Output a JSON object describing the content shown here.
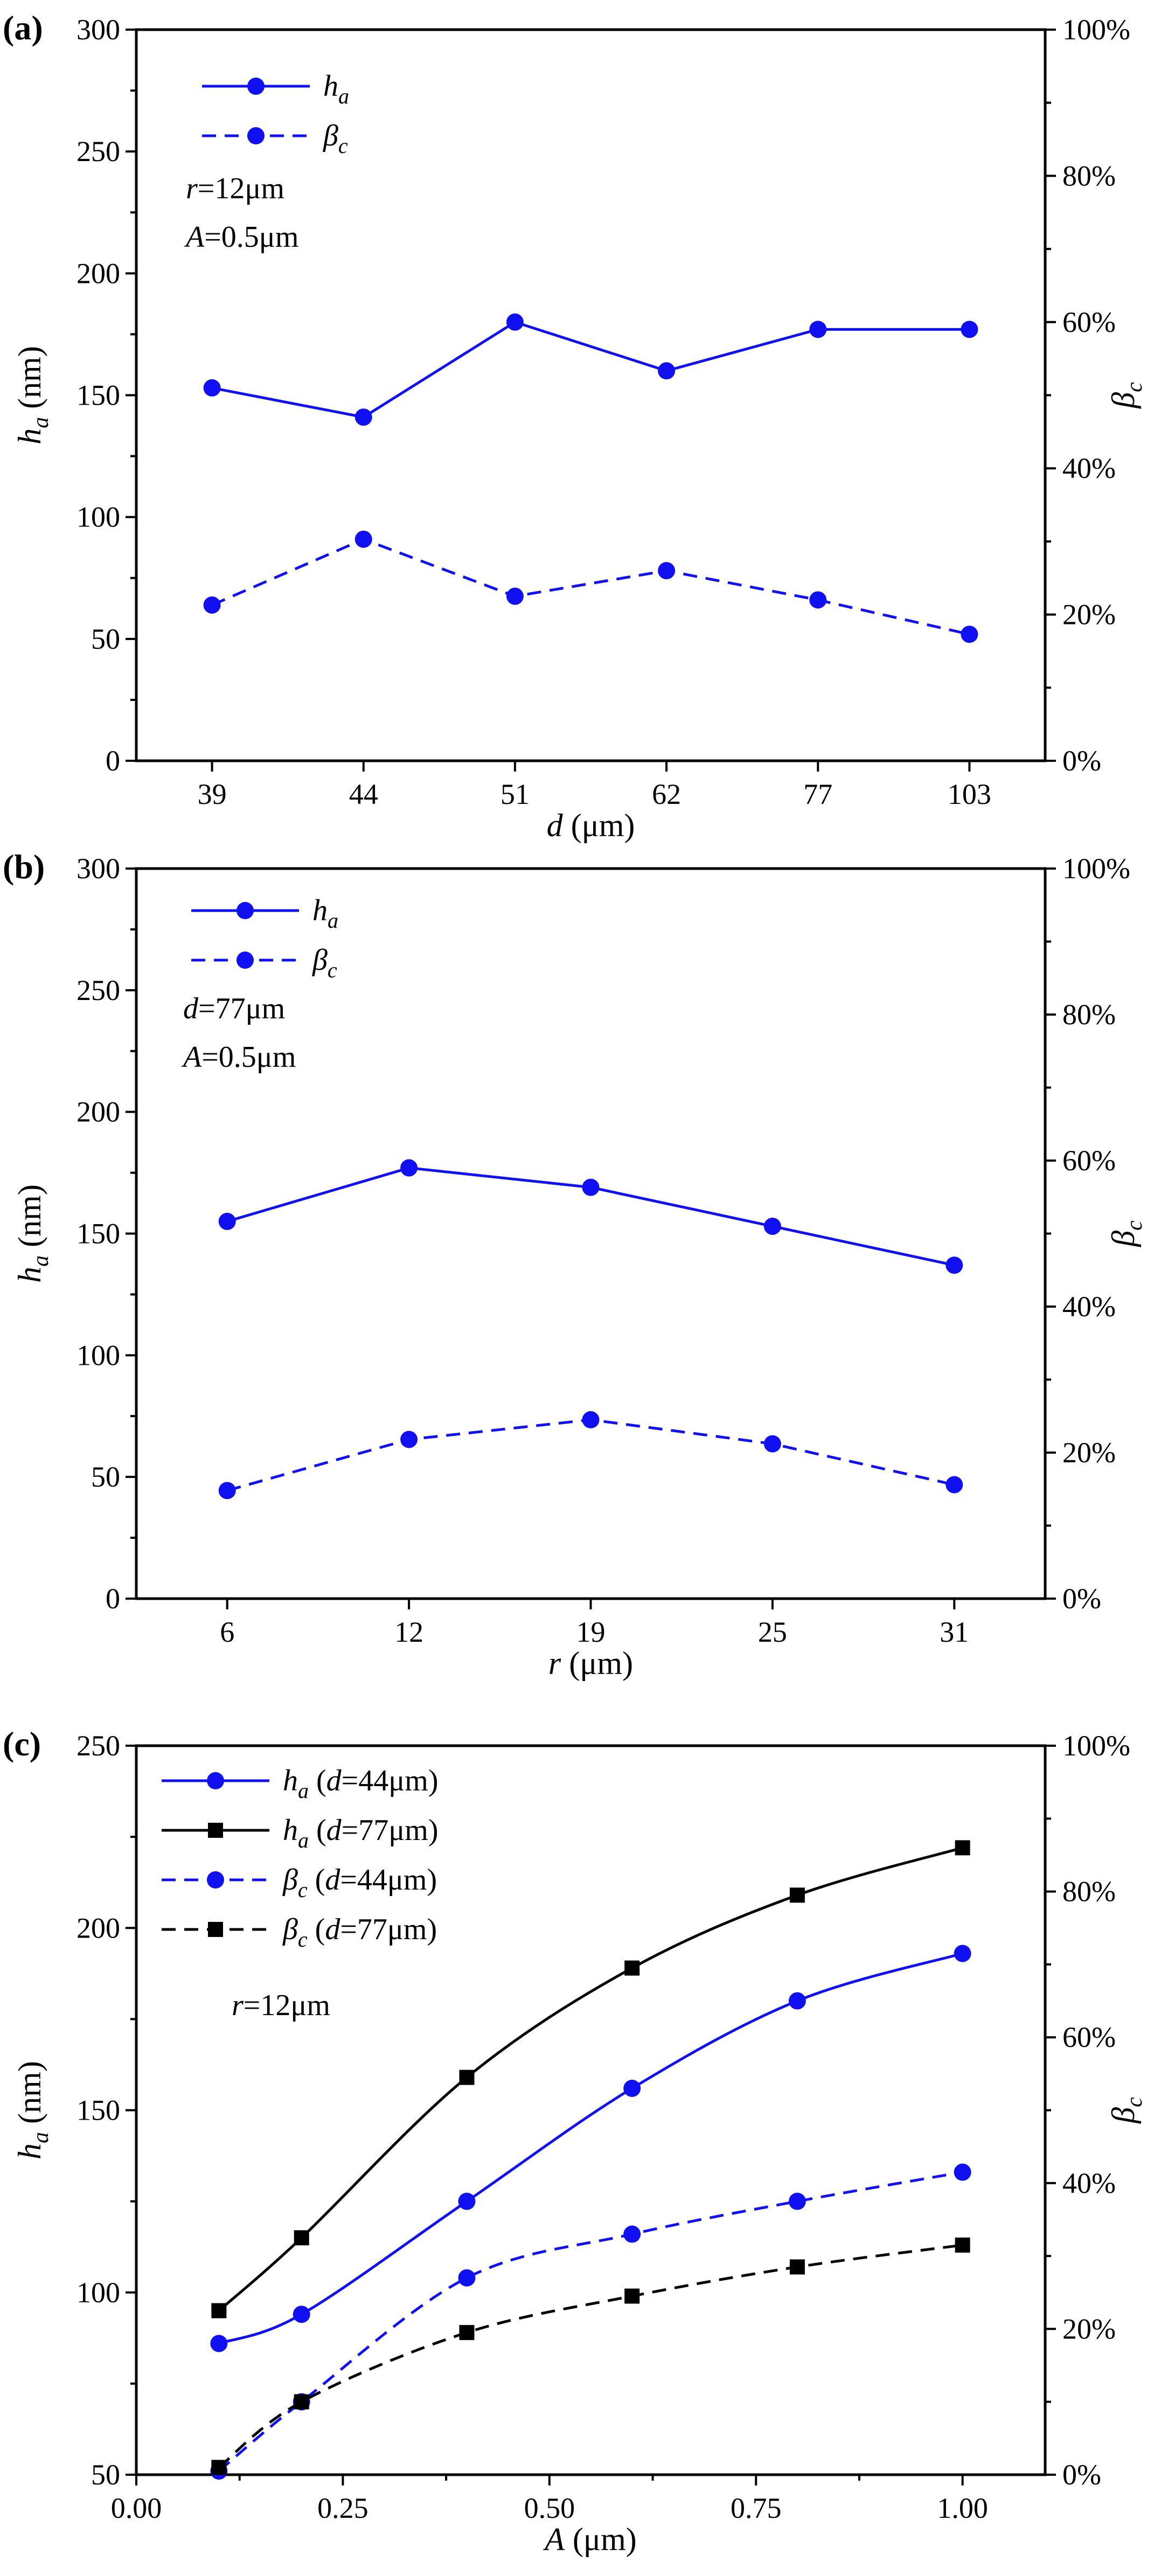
{
  "figure": {
    "colors": {
      "blue": "#1010f0",
      "black": "#000000"
    }
  },
  "chart_data": [
    {
      "type": "line",
      "panel_label": "(a)",
      "x_type": "categorical",
      "categories": [
        "39",
        "44",
        "51",
        "62",
        "77",
        "103"
      ],
      "xlabel_var": "d",
      "xlabel_unit": " (μm)",
      "ylabel_var": "h",
      "ylabel_sub": "a",
      "ylabel_unit": " (nm)",
      "ylim": [
        0,
        300
      ],
      "yticks": [
        "0",
        "50",
        "100",
        "150",
        "200",
        "250",
        "300"
      ],
      "y2label_var": "β",
      "y2label_sub": "c",
      "y2lim": [
        0,
        100
      ],
      "y2ticks": [
        "0%",
        "20%",
        "40%",
        "60%",
        "80%",
        "100%"
      ],
      "series": [
        {
          "name": "h_a",
          "label_var": "h",
          "label_sub": "a",
          "label_rest": "",
          "axis": "left",
          "style": "solid",
          "marker": "circle",
          "color": "#1010f0",
          "values": [
            153,
            141,
            180,
            160,
            177,
            177
          ]
        },
        {
          "name": "β_c",
          "label_var": "β",
          "label_sub": "c",
          "label_rest": "",
          "axis": "right",
          "style": "dashed",
          "marker": "circle",
          "color": "#1010f0",
          "values": [
            21.3,
            30.3,
            22.5,
            26.0,
            22.0,
            17.3
          ]
        }
      ],
      "annotations": [
        {
          "var": "r",
          "rest": "=12μm"
        },
        {
          "var": "A",
          "rest": "=0.5μm"
        }
      ]
    },
    {
      "type": "line",
      "panel_label": "(b)",
      "x_type": "categorical",
      "categories": [
        "6",
        "12",
        "19",
        "25",
        "31"
      ],
      "xlabel_var": "r",
      "xlabel_unit": " (μm)",
      "ylabel_var": "h",
      "ylabel_sub": "a",
      "ylabel_unit": " (nm)",
      "ylim": [
        0,
        300
      ],
      "yticks": [
        "0",
        "50",
        "100",
        "150",
        "200",
        "250",
        "300"
      ],
      "y2label_var": "β",
      "y2label_sub": "c",
      "y2lim": [
        0,
        100
      ],
      "y2ticks": [
        "0%",
        "20%",
        "40%",
        "60%",
        "80%",
        "100%"
      ],
      "series": [
        {
          "name": "h_a",
          "label_var": "h",
          "label_sub": "a",
          "label_rest": "",
          "axis": "left",
          "style": "solid",
          "marker": "circle",
          "color": "#1010f0",
          "values": [
            155,
            177,
            169,
            153,
            137
          ]
        },
        {
          "name": "β_c",
          "label_var": "β",
          "label_sub": "c",
          "label_rest": "",
          "axis": "right",
          "style": "dashed",
          "marker": "circle",
          "color": "#1010f0",
          "values": [
            14.8,
            21.8,
            24.5,
            21.2,
            15.6
          ]
        }
      ],
      "annotations": [
        {
          "var": "d",
          "rest": "=77μm"
        },
        {
          "var": "A",
          "rest": "=0.5μm"
        }
      ]
    },
    {
      "type": "line",
      "panel_label": "(c)",
      "x_type": "numeric",
      "xlim": [
        0,
        1.1
      ],
      "xticks": [
        0,
        0.25,
        0.5,
        0.75,
        1.0
      ],
      "xtick_labels": [
        "0.00",
        "0.25",
        "0.50",
        "0.75",
        "1.00"
      ],
      "xlabel_var": "A",
      "xlabel_unit": " (μm)",
      "ylabel_var": "h",
      "ylabel_sub": "a",
      "ylabel_unit": " (nm)",
      "ylim": [
        50,
        250
      ],
      "yticks": [
        "50",
        "100",
        "150",
        "200",
        "250"
      ],
      "y2label_var": "β",
      "y2label_sub": "c",
      "y2lim": [
        0,
        100
      ],
      "y2ticks": [
        "0%",
        "20%",
        "40%",
        "60%",
        "80%",
        "100%"
      ],
      "series": [
        {
          "name": "h_a (d=44μm)",
          "label_var": "h",
          "label_sub": "a",
          "label_rest": " (d=44μm)",
          "axis": "left",
          "style": "solid",
          "marker": "circle",
          "color": "#1010f0",
          "x": [
            0.1,
            0.2,
            0.4,
            0.6,
            0.8,
            1.0
          ],
          "values": [
            86,
            94,
            125,
            156,
            180,
            193
          ]
        },
        {
          "name": "h_a (d=77μm)",
          "label_var": "h",
          "label_sub": "a",
          "label_rest": " (d=77μm)",
          "axis": "left",
          "style": "solid",
          "marker": "square",
          "color": "#000000",
          "x": [
            0.1,
            0.2,
            0.4,
            0.6,
            0.8,
            1.0
          ],
          "values": [
            95,
            115,
            159,
            189,
            209,
            222
          ]
        },
        {
          "name": "β_c (d=44μm)",
          "label_var": "β",
          "label_sub": "c",
          "label_rest": " (d=44μm)",
          "axis": "right",
          "style": "dashed",
          "marker": "circle",
          "color": "#1010f0",
          "x": [
            0.1,
            0.2,
            0.4,
            0.6,
            0.8,
            1.0
          ],
          "values": [
            0.5,
            10.0,
            27.0,
            33.0,
            37.5,
            41.5
          ]
        },
        {
          "name": "β_c (d=77μm)",
          "label_var": "β",
          "label_sub": "c",
          "label_rest": " (d=77μm)",
          "axis": "right",
          "style": "dashed",
          "marker": "square",
          "color": "#000000",
          "x": [
            0.1,
            0.2,
            0.4,
            0.6,
            0.8,
            1.0
          ],
          "values": [
            1.0,
            10.0,
            19.5,
            24.5,
            28.5,
            31.5
          ]
        }
      ],
      "annotations": [
        {
          "var": "r",
          "rest": "=12μm"
        }
      ]
    }
  ]
}
